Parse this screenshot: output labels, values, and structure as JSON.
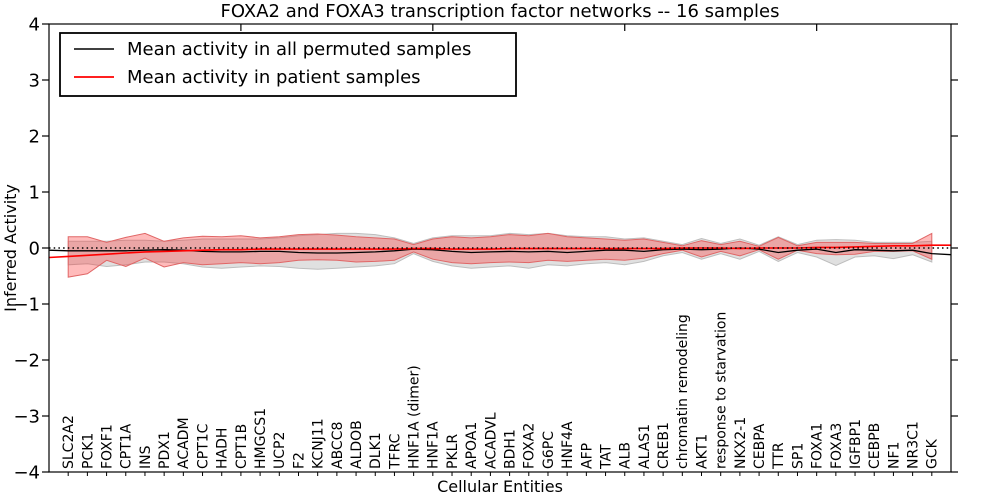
{
  "chart_data": {
    "type": "line",
    "title": "FOXA2 and FOXA3 transcription factor networks -- 16 samples",
    "xlabel": "Cellular Entities",
    "ylabel": "Inferred Activity",
    "ylim": [
      -4,
      4
    ],
    "yticks": [
      4,
      3,
      2,
      1,
      0,
      -1,
      -2,
      -3,
      -4
    ],
    "top_axis_ticks": [
      10,
      20,
      30,
      40
    ],
    "grid": false,
    "legend_position": "upper-left",
    "reference_line": {
      "y": 0,
      "style": "dotted",
      "color": "#000000"
    },
    "legend": [
      {
        "label": "Mean activity in all permuted samples",
        "color": "#000000"
      },
      {
        "label": "Mean activity in patient samples",
        "color": "#ff0000"
      }
    ],
    "categories": [
      "SLC2A2",
      "PCK1",
      "FOXF1",
      "CPT1A",
      "INS",
      "PDX1",
      "ACADM",
      "CPT1C",
      "HADH",
      "CPT1B",
      "HMGCS1",
      "UCP2",
      "F2",
      "KCNJ11",
      "ABCC8",
      "ALDOB",
      "DLK1",
      "TFRC",
      "HNF1A (dimer)",
      "HNF1A",
      "PKLR",
      "APOA1",
      "ACADVL",
      "BDH1",
      "FOXA2",
      "G6PC",
      "HNF4A",
      "AFP",
      "TAT",
      "ALB",
      "ALAS1",
      "CREB1",
      "chromatin remodeling",
      "AKT1",
      "response to starvation",
      "NKX2-1",
      "CEBPA",
      "TTR",
      "SP1",
      "FOXA1",
      "FOXA3",
      "IGFBP1",
      "CEBPB",
      "NF1",
      "NR3C1",
      "GCK"
    ],
    "series": [
      {
        "name": "Mean activity in all permuted samples",
        "color": "#000000",
        "band_color": "#999999",
        "band_edge": "#bdbdbd",
        "edge_values": [
          -0.04,
          -0.12
        ],
        "values": [
          -0.05,
          -0.05,
          -0.05,
          -0.05,
          -0.04,
          -0.03,
          -0.04,
          -0.06,
          -0.07,
          -0.07,
          -0.06,
          -0.06,
          -0.08,
          -0.09,
          -0.09,
          -0.08,
          -0.07,
          -0.05,
          -0.02,
          -0.03,
          -0.06,
          -0.08,
          -0.07,
          -0.06,
          -0.07,
          -0.06,
          -0.08,
          -0.06,
          -0.04,
          -0.04,
          -0.06,
          -0.03,
          -0.02,
          -0.03,
          -0.02,
          0.0,
          -0.02,
          -0.08,
          -0.04,
          -0.02,
          -0.08,
          -0.03,
          -0.04,
          -0.05,
          -0.04,
          -0.1
        ],
        "band_low": [
          -0.3,
          -0.28,
          -0.33,
          -0.3,
          -0.25,
          -0.25,
          -0.28,
          -0.34,
          -0.36,
          -0.34,
          -0.32,
          -0.33,
          -0.36,
          -0.38,
          -0.36,
          -0.34,
          -0.32,
          -0.28,
          -0.1,
          -0.24,
          -0.32,
          -0.36,
          -0.34,
          -0.32,
          -0.36,
          -0.3,
          -0.32,
          -0.28,
          -0.26,
          -0.3,
          -0.24,
          -0.14,
          -0.08,
          -0.2,
          -0.1,
          -0.2,
          -0.06,
          -0.24,
          -0.08,
          -0.16,
          -0.31,
          -0.16,
          -0.14,
          -0.19,
          -0.12,
          -0.25
        ],
        "band_high": [
          0.12,
          0.12,
          0.12,
          0.14,
          0.14,
          0.12,
          0.14,
          0.16,
          0.16,
          0.16,
          0.16,
          0.18,
          0.22,
          0.24,
          0.26,
          0.26,
          0.24,
          0.18,
          0.08,
          0.18,
          0.22,
          0.22,
          0.22,
          0.26,
          0.24,
          0.26,
          0.22,
          0.2,
          0.2,
          0.16,
          0.18,
          0.12,
          0.06,
          0.17,
          0.08,
          0.16,
          0.05,
          0.2,
          0.06,
          0.14,
          0.15,
          0.14,
          0.1,
          0.1,
          0.1,
          0.12
        ]
      },
      {
        "name": "Mean activity in patient samples",
        "color": "#ff0000",
        "band_color": "#ff2a2a",
        "band_edge": "#e06666",
        "edge_values": [
          -0.17,
          0.05
        ],
        "values": [
          -0.15,
          -0.13,
          -0.11,
          -0.09,
          -0.07,
          -0.06,
          -0.05,
          -0.04,
          -0.03,
          -0.03,
          -0.02,
          -0.02,
          -0.02,
          -0.02,
          -0.02,
          -0.02,
          -0.02,
          -0.02,
          -0.01,
          -0.01,
          -0.02,
          -0.02,
          -0.02,
          -0.01,
          -0.01,
          -0.01,
          -0.01,
          -0.01,
          -0.01,
          -0.01,
          -0.01,
          -0.01,
          0.0,
          0.0,
          0.0,
          -0.01,
          0.0,
          0.0,
          0.0,
          0.01,
          0.01,
          0.02,
          0.03,
          0.04,
          0.04,
          0.05
        ],
        "band_low": [
          -0.52,
          -0.46,
          -0.22,
          -0.33,
          -0.18,
          -0.34,
          -0.26,
          -0.3,
          -0.28,
          -0.26,
          -0.28,
          -0.26,
          -0.22,
          -0.21,
          -0.22,
          -0.25,
          -0.24,
          -0.22,
          -0.07,
          -0.2,
          -0.26,
          -0.28,
          -0.26,
          -0.25,
          -0.26,
          -0.22,
          -0.24,
          -0.22,
          -0.2,
          -0.22,
          -0.18,
          -0.1,
          -0.04,
          -0.16,
          -0.06,
          -0.14,
          -0.03,
          -0.2,
          -0.04,
          -0.1,
          -0.12,
          -0.11,
          -0.06,
          -0.06,
          -0.05,
          -0.2
        ],
        "band_high": [
          0.2,
          0.2,
          0.1,
          0.19,
          0.26,
          0.12,
          0.18,
          0.21,
          0.2,
          0.22,
          0.18,
          0.2,
          0.24,
          0.25,
          0.23,
          0.2,
          0.18,
          0.16,
          0.06,
          0.16,
          0.2,
          0.18,
          0.2,
          0.24,
          0.22,
          0.26,
          0.2,
          0.18,
          0.16,
          0.14,
          0.16,
          0.1,
          0.04,
          0.13,
          0.06,
          0.12,
          0.03,
          0.19,
          0.04,
          0.1,
          0.1,
          0.1,
          0.08,
          0.08,
          0.08,
          0.26
        ]
      }
    ]
  }
}
